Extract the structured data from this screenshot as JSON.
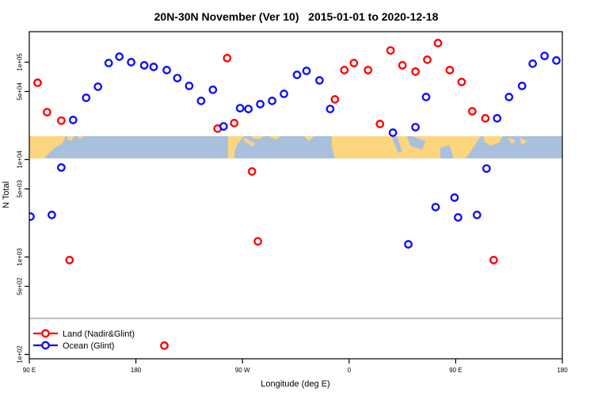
{
  "title": "20N-30N November (Ver 10)   2015-01-01 to 2020-12-18",
  "colors": {
    "land_series": "#ff0000",
    "ocean_series": "#0d0dff",
    "map_land": "#fcd57e",
    "map_ocean": "#a9c0dc",
    "legend_border": "#808080",
    "axis": "#000000"
  },
  "legend": {
    "items": [
      {
        "label": "Land (Nadir&Glint)",
        "color": "#ff0000"
      },
      {
        "label": "Ocean (Glint)",
        "color": "#0d0dff"
      }
    ]
  },
  "chart_data": {
    "type": "scatter",
    "title": "20N-30N November (Ver 10)   2015-01-01 to 2020-12-18",
    "xlabel": "Longitude (deg E)",
    "ylabel": "N Total",
    "x_axis": {
      "note": "x values are degrees east of 90E; axis spans 450 degrees wrapping the globe from 90E to 180",
      "domain": [
        0,
        450
      ],
      "ticks": [
        {
          "x": 0,
          "label": "90 E"
        },
        {
          "x": 90,
          "label": "180"
        },
        {
          "x": 180,
          "label": "90 W"
        },
        {
          "x": 270,
          "label": "0"
        },
        {
          "x": 360,
          "label": "90 E"
        },
        {
          "x": 450,
          "label": "180"
        }
      ]
    },
    "y_axis": {
      "scale": "log10",
      "domain": [
        90,
        204000
      ],
      "ticks": [
        {
          "value": 100000,
          "label": "1e+05"
        },
        {
          "value": 50000,
          "label": "5e+04"
        },
        {
          "value": 10000,
          "label": "1e+04"
        },
        {
          "value": 5000,
          "label": "5e+03"
        },
        {
          "value": 1000,
          "label": "1e+03"
        },
        {
          "value": 500,
          "label": "5e+02"
        },
        {
          "value": 100,
          "label": "1e+02"
        }
      ]
    },
    "map_band": {
      "note": "20N-30N world-map strip overlay drawn across the plot near 1e+04"
    },
    "series": [
      {
        "name": "Land (Nadir&Glint)",
        "color": "#ff0000",
        "points": [
          [
            7,
            61500
          ],
          [
            15,
            30700
          ],
          [
            27,
            25100
          ],
          [
            34,
            930
          ],
          [
            114,
            123
          ],
          [
            159,
            20800
          ],
          [
            167,
            110000
          ],
          [
            173,
            23700
          ],
          [
            188,
            7550
          ],
          [
            193,
            1450
          ],
          [
            258,
            41500
          ],
          [
            266,
            83000
          ],
          [
            274,
            98000
          ],
          [
            286,
            83000
          ],
          [
            296,
            23200
          ],
          [
            305,
            132000
          ],
          [
            315,
            92700
          ],
          [
            326,
            80000
          ],
          [
            336,
            106000
          ],
          [
            345,
            157000
          ],
          [
            355,
            83000
          ],
          [
            365,
            62600
          ],
          [
            374,
            31300
          ],
          [
            385,
            26500
          ],
          [
            392,
            930
          ]
        ]
      },
      {
        "name": "Ocean (Glint)",
        "color": "#0d0dff",
        "points": [
          [
            1,
            2600
          ],
          [
            19,
            2700
          ],
          [
            27,
            8300
          ],
          [
            37,
            25500
          ],
          [
            48,
            43100
          ],
          [
            58,
            56000
          ],
          [
            67,
            98000
          ],
          [
            76,
            114000
          ],
          [
            86,
            100000
          ],
          [
            97,
            92700
          ],
          [
            105,
            89300
          ],
          [
            116,
            83000
          ],
          [
            125,
            68700
          ],
          [
            135,
            57000
          ],
          [
            145,
            40000
          ],
          [
            155,
            52000
          ],
          [
            164,
            21900
          ],
          [
            178,
            33700
          ],
          [
            185,
            33100
          ],
          [
            195,
            37100
          ],
          [
            205,
            40000
          ],
          [
            215,
            47300
          ],
          [
            226,
            74100
          ],
          [
            234,
            81400
          ],
          [
            245,
            65000
          ],
          [
            254,
            33100
          ],
          [
            307,
            18900
          ],
          [
            320,
            1350
          ],
          [
            326,
            21500
          ],
          [
            335,
            43900
          ],
          [
            343,
            3250
          ],
          [
            359,
            4070
          ],
          [
            362,
            2550
          ],
          [
            378,
            2700
          ],
          [
            386,
            8100
          ],
          [
            395,
            26500
          ],
          [
            405,
            43900
          ],
          [
            416,
            57000
          ],
          [
            425,
            96500
          ],
          [
            435,
            116000
          ],
          [
            445,
            104000
          ]
        ]
      }
    ]
  }
}
